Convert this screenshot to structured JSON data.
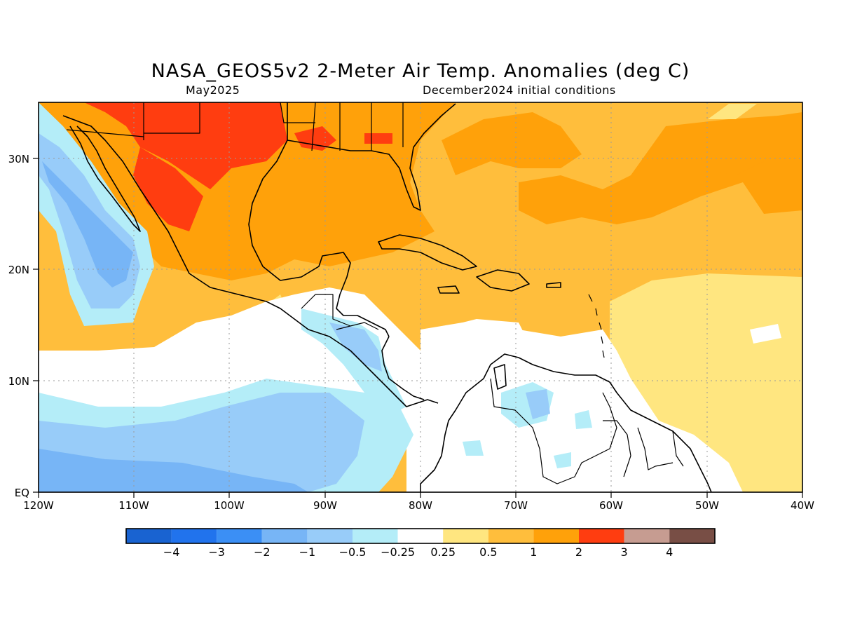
{
  "title": "NASA_GEOS5v2 2-Meter Air Temp. Anomalies (deg C)",
  "subtitle_left": "May2025",
  "subtitle_right": "December2024 initial conditions",
  "map": {
    "lon_range": [
      -120,
      -40
    ],
    "lat_range": [
      0,
      35
    ],
    "x_ticks": [
      "120W",
      "110W",
      "100W",
      "90W",
      "80W",
      "70W",
      "60W",
      "50W",
      "40W"
    ],
    "y_ticks": [
      "EQ",
      "10N",
      "20N",
      "30N"
    ]
  },
  "colorbar": {
    "colors": [
      "#1963d1",
      "#2173ed",
      "#3b8ff5",
      "#77b5f6",
      "#98ccf9",
      "#b4edf8",
      "#ffffff",
      "#ffe680",
      "#ffbe3c",
      "#ffa10a",
      "#ff3d10",
      "#c69c91",
      "#784e45"
    ],
    "labels": [
      "−4",
      "−3",
      "−2",
      "−1",
      "−0.5",
      "−0.25",
      "0.25",
      "0.5",
      "1",
      "2",
      "3",
      "4"
    ]
  },
  "colors": {
    "neg_strong": "#77b5f6",
    "neg_mid": "#98ccf9",
    "neg_weak": "#b4edf8",
    "neutral": "#ffffff",
    "pos_weak": "#ffe680",
    "pos_mid": "#ffbe3c",
    "pos_strong": "#ffa10a",
    "pos_hot": "#ff3d10"
  }
}
